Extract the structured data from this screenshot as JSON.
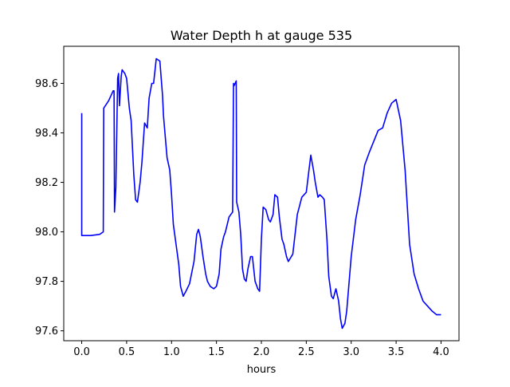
{
  "chart_data": {
    "type": "line",
    "title": "Water Depth h at gauge 535",
    "xlabel": "hours",
    "ylabel": "",
    "xlim": [
      -0.2,
      4.2
    ],
    "ylim": [
      97.56,
      98.75
    ],
    "xticks": [
      0.0,
      0.5,
      1.0,
      1.5,
      2.0,
      2.5,
      3.0,
      3.5,
      4.0
    ],
    "xtick_labels": [
      "0.0",
      "0.5",
      "1.0",
      "1.5",
      "2.0",
      "2.5",
      "3.0",
      "3.5",
      "4.0"
    ],
    "yticks": [
      97.6,
      97.8,
      98.0,
      98.2,
      98.4,
      98.6
    ],
    "ytick_labels": [
      "97.6",
      "97.8",
      "98.0",
      "98.2",
      "98.4",
      "98.6"
    ],
    "grid": false,
    "series": [
      {
        "name": "",
        "color": "#0000ff",
        "x": [
          0.0,
          0.0,
          0.005,
          0.1,
          0.2,
          0.24,
          0.245,
          0.3,
          0.35,
          0.36,
          0.365,
          0.38,
          0.4,
          0.41,
          0.42,
          0.44,
          0.45,
          0.47,
          0.48,
          0.5,
          0.53,
          0.55,
          0.58,
          0.6,
          0.62,
          0.65,
          0.67,
          0.7,
          0.73,
          0.75,
          0.78,
          0.8,
          0.83,
          0.87,
          0.9,
          0.91,
          0.95,
          0.98,
          1.0,
          1.02,
          1.05,
          1.08,
          1.1,
          1.13,
          1.16,
          1.2,
          1.25,
          1.28,
          1.3,
          1.32,
          1.35,
          1.38,
          1.4,
          1.43,
          1.47,
          1.5,
          1.53,
          1.55,
          1.58,
          1.6,
          1.64,
          1.68,
          1.69,
          1.695,
          1.72,
          1.725,
          1.75,
          1.77,
          1.79,
          1.81,
          1.83,
          1.85,
          1.88,
          1.9,
          1.93,
          1.96,
          1.98,
          2.0,
          2.02,
          2.05,
          2.08,
          2.1,
          2.13,
          2.15,
          2.18,
          2.2,
          2.23,
          2.25,
          2.28,
          2.3,
          2.35,
          2.4,
          2.45,
          2.5,
          2.55,
          2.58,
          2.6,
          2.63,
          2.65,
          2.68,
          2.7,
          2.73,
          2.75,
          2.78,
          2.8,
          2.83,
          2.86,
          2.88,
          2.9,
          2.93,
          2.95,
          3.0,
          3.05,
          3.1,
          3.15,
          3.2,
          3.3,
          3.35,
          3.4,
          3.45,
          3.5,
          3.55,
          3.6,
          3.65,
          3.7,
          3.75,
          3.8,
          3.85,
          3.9,
          3.95,
          4.0
        ],
        "y": [
          98.48,
          97.985,
          97.985,
          97.985,
          97.99,
          98.0,
          98.5,
          98.53,
          98.57,
          98.57,
          98.08,
          98.18,
          98.62,
          98.64,
          98.51,
          98.63,
          98.655,
          98.645,
          98.64,
          98.62,
          98.5,
          98.45,
          98.23,
          98.13,
          98.12,
          98.2,
          98.28,
          98.44,
          98.42,
          98.54,
          98.6,
          98.6,
          98.7,
          98.69,
          98.55,
          98.47,
          98.3,
          98.25,
          98.15,
          98.03,
          97.95,
          97.87,
          97.78,
          97.74,
          97.76,
          97.79,
          97.88,
          97.99,
          98.01,
          97.98,
          97.9,
          97.83,
          97.8,
          97.78,
          97.77,
          97.78,
          97.83,
          97.93,
          97.98,
          98.0,
          98.06,
          98.08,
          98.6,
          98.59,
          98.61,
          98.12,
          98.08,
          97.99,
          97.85,
          97.81,
          97.8,
          97.85,
          97.9,
          97.9,
          97.8,
          97.77,
          97.76,
          97.97,
          98.1,
          98.09,
          98.05,
          98.04,
          98.07,
          98.15,
          98.14,
          98.06,
          97.97,
          97.95,
          97.9,
          97.88,
          97.91,
          98.07,
          98.14,
          98.16,
          98.31,
          98.25,
          98.2,
          98.14,
          98.15,
          98.14,
          98.13,
          97.97,
          97.82,
          97.74,
          97.73,
          97.77,
          97.72,
          97.65,
          97.61,
          97.63,
          97.68,
          97.9,
          98.05,
          98.15,
          98.27,
          98.32,
          98.41,
          98.42,
          98.48,
          98.52,
          98.535,
          98.45,
          98.25,
          97.95,
          97.83,
          97.77,
          97.72,
          97.7,
          97.68,
          97.665,
          97.665
        ]
      }
    ]
  }
}
